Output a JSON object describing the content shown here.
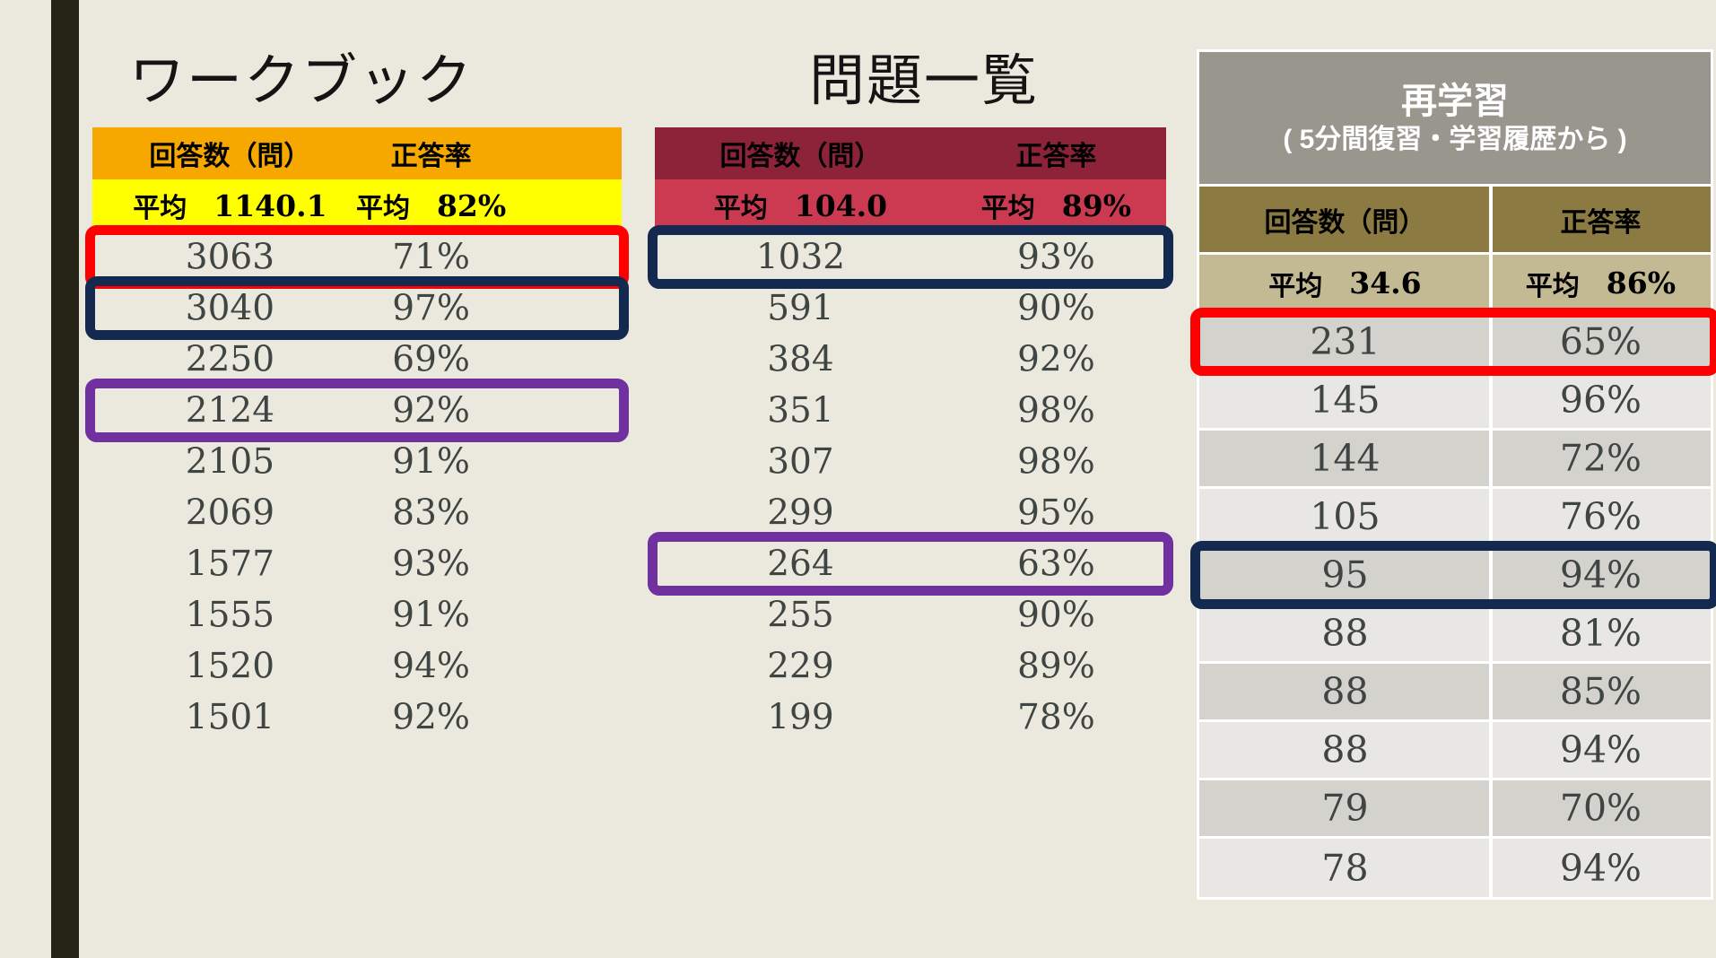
{
  "page": {
    "background_color": "#EBE9DE",
    "accent_bar_color": "#262317",
    "number_text_color": "#3F4543"
  },
  "highlight_colors": {
    "red": "#FE0000",
    "navy": "#13294F",
    "purple": "#7030A0"
  },
  "tables": [
    {
      "id": "workbook",
      "title": "ワークブック",
      "columns": [
        "回答数（問）",
        "正答率"
      ],
      "avg_label": "平均",
      "avg_values": [
        "1140.1",
        "82%"
      ],
      "colors": {
        "header_bg": "#F6A700",
        "avg_bg": "#FFFF00"
      },
      "striped": false,
      "rows": [
        {
          "count": "3063",
          "rate": "71%",
          "highlight": "red"
        },
        {
          "count": "3040",
          "rate": "97%",
          "highlight": "navy"
        },
        {
          "count": "2250",
          "rate": "69%"
        },
        {
          "count": "2124",
          "rate": "92%",
          "highlight": "purple"
        },
        {
          "count": "2105",
          "rate": "91%"
        },
        {
          "count": "2069",
          "rate": "83%"
        },
        {
          "count": "1577",
          "rate": "93%"
        },
        {
          "count": "1555",
          "rate": "91%"
        },
        {
          "count": "1520",
          "rate": "94%"
        },
        {
          "count": "1501",
          "rate": "92%"
        }
      ]
    },
    {
      "id": "question-list",
      "title": "問題一覧",
      "columns": [
        "回答数（問）",
        "正答率"
      ],
      "avg_label": "平均",
      "avg_values": [
        "104.0",
        "89%"
      ],
      "colors": {
        "header_bg": "#8C2339",
        "avg_bg": "#CC3A52"
      },
      "striped": false,
      "rows": [
        {
          "count": "1032",
          "rate": "93%",
          "highlight": "navy"
        },
        {
          "count": "591",
          "rate": "90%"
        },
        {
          "count": "384",
          "rate": "92%"
        },
        {
          "count": "351",
          "rate": "98%"
        },
        {
          "count": "307",
          "rate": "98%"
        },
        {
          "count": "299",
          "rate": "95%"
        },
        {
          "count": "264",
          "rate": "63%",
          "highlight": "purple"
        },
        {
          "count": "255",
          "rate": "90%"
        },
        {
          "count": "229",
          "rate": "89%"
        },
        {
          "count": "199",
          "rate": "78%"
        }
      ]
    },
    {
      "id": "relearning",
      "title": "再学習",
      "subtitle": "( 5分間復習・学習履歴から )",
      "columns": [
        "回答数（問）",
        "正答率"
      ],
      "avg_label": "平均",
      "avg_values": [
        "34.6",
        "86%"
      ],
      "colors": {
        "title_bg": "#98968D",
        "header_bg": "#8B7B42",
        "avg_bg": "#C3BA94",
        "row_a": "#D3D2CD",
        "row_b": "#E8E7E3"
      },
      "striped": true,
      "rows": [
        {
          "count": "231",
          "rate": "65%",
          "highlight": "red"
        },
        {
          "count": "145",
          "rate": "96%"
        },
        {
          "count": "144",
          "rate": "72%"
        },
        {
          "count": "105",
          "rate": "76%"
        },
        {
          "count": "95",
          "rate": "94%",
          "highlight": "navy"
        },
        {
          "count": "88",
          "rate": "81%"
        },
        {
          "count": "88",
          "rate": "85%"
        },
        {
          "count": "88",
          "rate": "94%"
        },
        {
          "count": "79",
          "rate": "70%"
        },
        {
          "count": "78",
          "rate": "94%"
        }
      ]
    }
  ]
}
